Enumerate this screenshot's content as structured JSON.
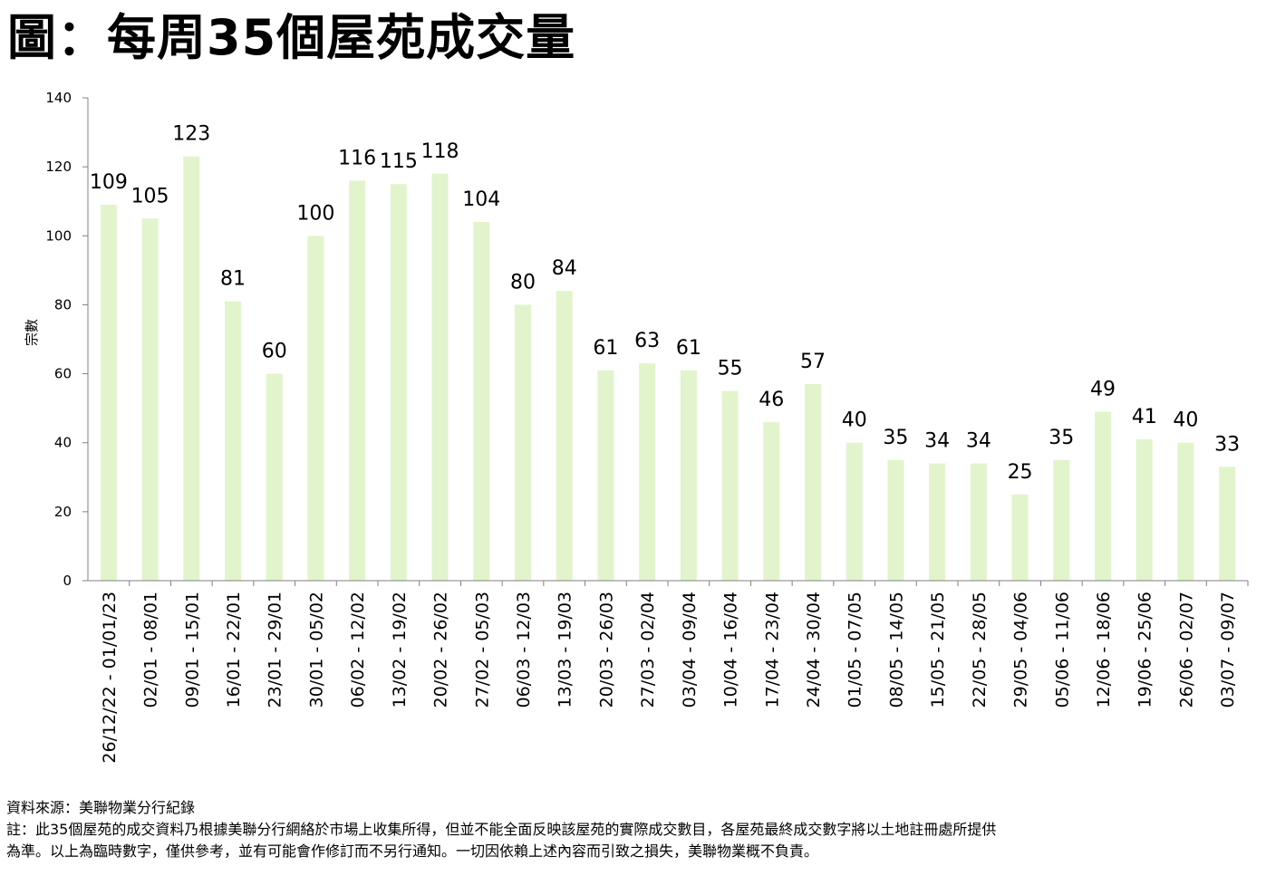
{
  "title": "圖：每周35個屋苑成交量",
  "chart_data": {
    "type": "bar",
    "title": "圖：每周35個屋苑成交量",
    "xlabel": "",
    "ylabel": "宗數",
    "ylim": [
      0,
      140
    ],
    "yticks": [
      0,
      20,
      40,
      60,
      80,
      100,
      120,
      140
    ],
    "grid": false,
    "bar_color": "#E2F4CC",
    "categories": [
      "26/12/22 - 01/01/23",
      "02/01 - 08/01",
      "09/01 - 15/01",
      "16/01 - 22/01",
      "23/01 - 29/01",
      "30/01 - 05/02",
      "06/02 - 12/02",
      "13/02 - 19/02",
      "20/02 - 26/02",
      "27/02 - 05/03",
      "06/03 - 12/03",
      "13/03 - 19/03",
      "20/03 - 26/03",
      "27/03 - 02/04",
      "03/04 - 09/04",
      "10/04 - 16/04",
      "17/04 - 23/04",
      "24/04 - 30/04",
      "01/05 - 07/05",
      "08/05 - 14/05",
      "15/05 - 21/05",
      "22/05 - 28/05",
      "29/05 - 04/06",
      "05/06 - 11/06",
      "12/06 - 18/06",
      "19/06 - 25/06",
      "26/06 - 02/07",
      "03/07 - 09/07"
    ],
    "values": [
      109,
      105,
      123,
      81,
      60,
      100,
      116,
      115,
      118,
      104,
      80,
      84,
      61,
      63,
      61,
      55,
      46,
      57,
      40,
      35,
      34,
      34,
      25,
      35,
      49,
      41,
      40,
      33
    ]
  },
  "footer": {
    "source": "資料來源：美聯物業分行紀錄",
    "note_line1": "註：此35個屋苑的成交資料乃根據美聯分行網絡於市場上收集所得，但並不能全面反映該屋苑的實際成交數目，各屋苑最終成交數字將以土地註冊處所提供",
    "note_line2": "為準。以上為臨時數字，僅供參考，並有可能會作修訂而不另行通知。一切因依賴上述內容而引致之損失，美聯物業概不負責。"
  }
}
